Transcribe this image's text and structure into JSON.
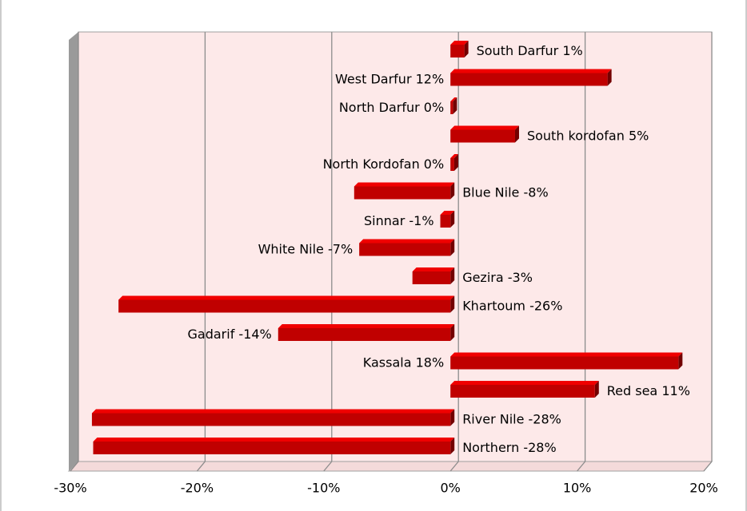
{
  "chart_data": {
    "type": "bar",
    "orientation": "horizontal",
    "categories": [
      "South Darfur",
      "West Darfur",
      "North Darfur",
      "South kordofan",
      "North Kordofan",
      "Blue Nile",
      "Sinnar",
      "White Nile",
      "Gezira",
      "Khartoum",
      "Gadarif",
      "Kassala",
      "Red sea",
      "River Nile",
      "Northern"
    ],
    "values": [
      1.1,
      12.4,
      0.2,
      5.1,
      0.3,
      -7.6,
      -0.8,
      -7.2,
      -3.0,
      -26.2,
      -13.6,
      18.0,
      11.4,
      -28.3,
      -28.2
    ],
    "value_labels": [
      "1%",
      "12%",
      "0%",
      "5%",
      "0%",
      "-8%",
      "-1%",
      "-7%",
      "-3%",
      "-26%",
      "-14%",
      "18%",
      "11%",
      "-28%",
      "-28%"
    ],
    "color": "#c00000",
    "xlim": [
      -30,
      20
    ],
    "xticks": [
      {
        "value": -30,
        "label": "-30%"
      },
      {
        "value": -20,
        "label": "-20%"
      },
      {
        "value": -10,
        "label": "-10%"
      },
      {
        "value": 0,
        "label": "0%"
      },
      {
        "value": 10,
        "label": "10%"
      },
      {
        "value": 20,
        "label": "20%"
      }
    ],
    "grid": true
  }
}
